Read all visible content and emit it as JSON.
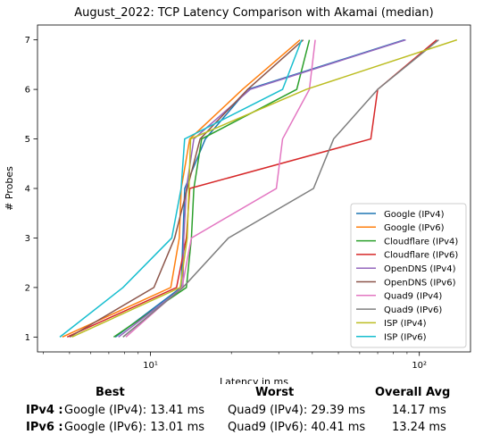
{
  "chart_data": {
    "type": "line",
    "title": "August_2022: TCP Latency Comparison with Akamai (median)",
    "xlabel": "Latency in ms",
    "ylabel": "# Probes",
    "xscale": "log",
    "xlim": [
      3.8,
      155
    ],
    "ylim": [
      0.7,
      7.3
    ],
    "xticks": [
      10,
      100
    ],
    "xtick_labels": [
      "10¹",
      "10²"
    ],
    "yticks": [
      1,
      2,
      3,
      4,
      5,
      6,
      7
    ],
    "ytick_labels": [
      "1",
      "2",
      "3",
      "4",
      "5",
      "6",
      "7"
    ],
    "grid": false,
    "legend_position": "lower-right",
    "series": [
      {
        "name": "Google (IPv4)",
        "color": "#1f77b4",
        "x": [
          7.4,
          13.0,
          13.2,
          13.41,
          16.0,
          23.0,
          88.0
        ],
        "y": [
          1,
          2,
          3,
          4,
          5,
          6,
          7
        ]
      },
      {
        "name": "Google (IPv6)",
        "color": "#ff7f0e",
        "x": [
          4.7,
          11.9,
          12.8,
          13.01,
          14.0,
          22.0,
          36.0
        ],
        "y": [
          1,
          2,
          3,
          4,
          5,
          6,
          7
        ]
      },
      {
        "name": "Cloudflare (IPv4)",
        "color": "#2ca02c",
        "x": [
          7.3,
          13.6,
          14.2,
          14.5,
          15.5,
          35.0,
          39.0
        ],
        "y": [
          1,
          2,
          3,
          4,
          5,
          6,
          7
        ]
      },
      {
        "name": "Cloudflare (IPv6)",
        "color": "#d62728",
        "x": [
          4.9,
          12.5,
          13.6,
          14.0,
          66.0,
          70.0,
          116.0
        ],
        "y": [
          1,
          2,
          3,
          4,
          5,
          6,
          7
        ]
      },
      {
        "name": "OpenDNS (IPv4)",
        "color": "#9467bd",
        "x": [
          7.6,
          13.2,
          13.3,
          13.6,
          14.5,
          23.5,
          89.0
        ],
        "y": [
          1,
          2,
          3,
          4,
          5,
          6,
          7
        ]
      },
      {
        "name": "OpenDNS (IPv6)",
        "color": "#8c564b",
        "x": [
          5.0,
          10.3,
          12.3,
          13.7,
          15.3,
          23.0,
          37.0
        ],
        "y": [
          1,
          2,
          3,
          4,
          5,
          6,
          7
        ]
      },
      {
        "name": "Quad9 (IPv4)",
        "color": "#e377c2",
        "x": [
          8.1,
          13.1,
          14.2,
          29.39,
          31.0,
          39.0,
          41.0
        ],
        "y": [
          1,
          2,
          3,
          4,
          5,
          6,
          7
        ]
      },
      {
        "name": "Quad9 (IPv6)",
        "color": "#7f7f7f",
        "x": [
          7.9,
          13.2,
          19.5,
          40.41,
          48.0,
          70.0,
          118.0
        ],
        "y": [
          1,
          2,
          3,
          4,
          5,
          6,
          7
        ]
      },
      {
        "name": "ISP (IPv4)",
        "color": "#bcbd22",
        "x": [
          5.1,
          12.9,
          13.7,
          13.9,
          14.1,
          38.0,
          138.0
        ],
        "y": [
          1,
          2,
          3,
          4,
          5,
          6,
          7
        ]
      },
      {
        "name": "ISP (IPv6)",
        "color": "#17becf",
        "x": [
          4.6,
          7.9,
          12.0,
          13.0,
          13.4,
          31.0,
          36.5
        ],
        "y": [
          1,
          2,
          3,
          4,
          5,
          6,
          7
        ]
      }
    ]
  },
  "summary": {
    "headers": {
      "best": "Best",
      "worst": "Worst",
      "avg": "Overall Avg"
    },
    "rows": [
      {
        "label": "IPv4 :",
        "best": "Google (IPv4): 13.41 ms",
        "worst": "Quad9 (IPv4): 29.39 ms",
        "avg": "14.17 ms"
      },
      {
        "label": "IPv6 :",
        "best": "Google (IPv6): 13.01 ms",
        "worst": "Quad9 (IPv6): 40.41 ms",
        "avg": "13.24 ms"
      }
    ]
  }
}
